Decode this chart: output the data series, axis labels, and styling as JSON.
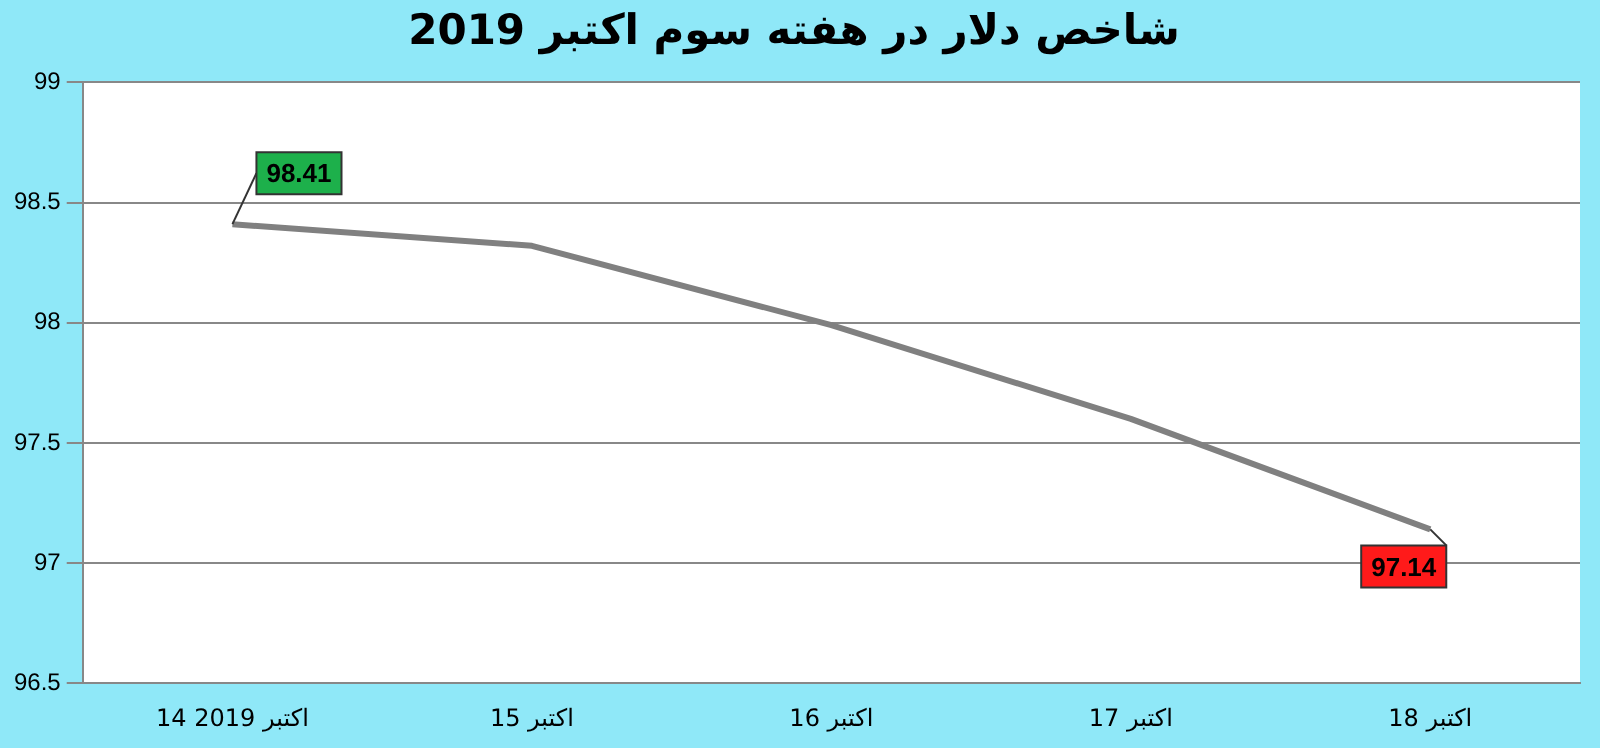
{
  "chart_data": {
    "type": "line",
    "title": "شاخص دلار در هفته سوم اکتبر 2019",
    "categories": [
      "14 اکتبر 2019",
      "15 اکتبر",
      "16 اکتبر",
      "17 اکتبر",
      "18 اکتبر"
    ],
    "series": [
      {
        "color": "#808080",
        "values": [
          98.41,
          98.32,
          97.99,
          97.6,
          97.14
        ],
        "value_labels": [
          "98.41",
          null,
          null,
          null,
          "97.14"
        ]
      }
    ],
    "ylim": [
      96.5,
      99
    ],
    "yticks": [
      96.5,
      97,
      97.5,
      98,
      98.5,
      99
    ],
    "grid": "y",
    "legend": false,
    "marker": "none",
    "line_style": "solid"
  }
}
